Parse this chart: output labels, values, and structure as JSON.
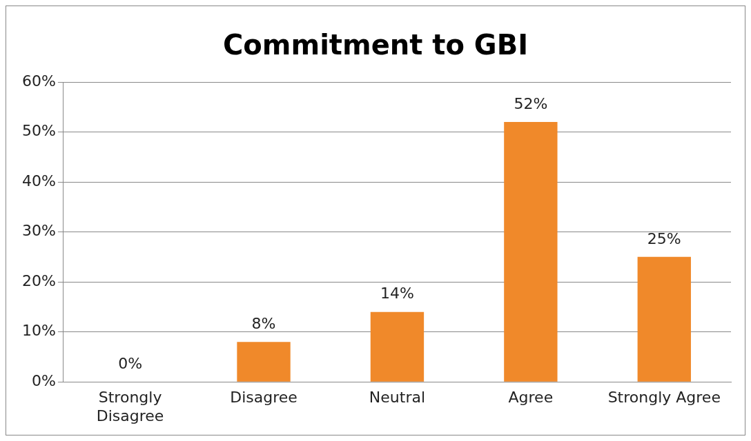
{
  "chart_data": {
    "type": "bar",
    "title": "Commitment to GBI",
    "categories": [
      "Strongly Disagree",
      "Disagree",
      "Neutral",
      "Agree",
      "Strongly Agree"
    ],
    "values": [
      0,
      8,
      14,
      52,
      25
    ],
    "value_labels": [
      "0%",
      "8%",
      "14%",
      "52%",
      "25%"
    ],
    "color": "#f0892a",
    "ylim": [
      0,
      60
    ],
    "yticks": [
      {
        "value": 0,
        "label": "0%"
      },
      {
        "value": 10,
        "label": "10%"
      },
      {
        "value": 20,
        "label": "20%"
      },
      {
        "value": 30,
        "label": "30%"
      },
      {
        "value": 40,
        "label": "40%"
      },
      {
        "value": 50,
        "label": "50%"
      },
      {
        "value": 60,
        "label": "60%"
      }
    ],
    "grid": "y",
    "legend": false
  }
}
